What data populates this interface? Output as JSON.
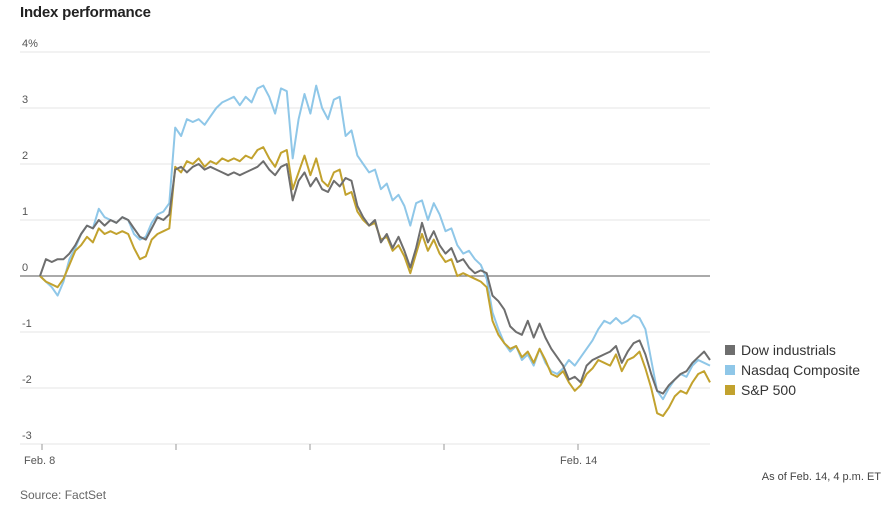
{
  "title": "Index performance",
  "note": "As of Feb. 14, 4 p.m. ET",
  "source": "Source: FactSet",
  "chart_data": {
    "type": "line",
    "ylim": [
      -3,
      4
    ],
    "y_ticks": [
      "4%",
      "3",
      "2",
      "1",
      "0",
      "-1",
      "-2",
      "-3"
    ],
    "x_ticks": [
      "Feb. 8",
      "Feb. 14"
    ],
    "legend_position": "right",
    "grid": true,
    "series": [
      {
        "name": "Dow industrials",
        "color": "#6e6e6e",
        "values": [
          0.0,
          0.3,
          0.25,
          0.3,
          0.3,
          0.4,
          0.55,
          0.75,
          0.9,
          0.85,
          1.0,
          0.9,
          1.0,
          0.95,
          1.05,
          1.0,
          0.85,
          0.7,
          0.65,
          0.85,
          1.05,
          1.0,
          1.1,
          1.9,
          1.95,
          1.85,
          1.95,
          2.0,
          1.9,
          1.95,
          1.9,
          1.85,
          1.8,
          1.85,
          1.8,
          1.85,
          1.9,
          1.95,
          2.05,
          1.9,
          1.8,
          1.95,
          2.0,
          1.35,
          1.7,
          1.85,
          1.6,
          1.75,
          1.55,
          1.5,
          1.7,
          1.6,
          1.75,
          1.7,
          1.25,
          1.05,
          0.9,
          1.0,
          0.6,
          0.75,
          0.5,
          0.7,
          0.45,
          0.15,
          0.5,
          0.95,
          0.6,
          0.8,
          0.55,
          0.4,
          0.5,
          0.25,
          0.3,
          0.15,
          0.05,
          0.1,
          0.05,
          -0.35,
          -0.45,
          -0.6,
          -0.9,
          -1.0,
          -1.05,
          -0.8,
          -1.1,
          -0.85,
          -1.1,
          -1.3,
          -1.45,
          -1.6,
          -1.85,
          -1.8,
          -1.9,
          -1.6,
          -1.5,
          -1.45,
          -1.4,
          -1.35,
          -1.25,
          -1.55,
          -1.35,
          -1.2,
          -1.15,
          -1.4,
          -1.75,
          -2.05,
          -2.1,
          -1.95,
          -1.85,
          -1.75,
          -1.7,
          -1.55,
          -1.45,
          -1.35,
          -1.5
        ]
      },
      {
        "name": "Nasdaq Composite",
        "color": "#8fc7e8",
        "values": [
          0.0,
          -0.1,
          -0.2,
          -0.35,
          -0.1,
          0.3,
          0.5,
          0.75,
          0.9,
          0.85,
          1.2,
          1.05,
          1.0,
          0.95,
          1.05,
          1.0,
          0.75,
          0.65,
          0.7,
          0.95,
          1.1,
          1.15,
          1.3,
          2.65,
          2.5,
          2.8,
          2.75,
          2.8,
          2.7,
          2.85,
          3.0,
          3.1,
          3.15,
          3.2,
          3.05,
          3.2,
          3.1,
          3.35,
          3.4,
          3.2,
          2.9,
          3.35,
          3.3,
          2.1,
          2.8,
          3.25,
          2.9,
          3.4,
          3.0,
          2.8,
          3.15,
          3.2,
          2.5,
          2.6,
          2.15,
          2.0,
          1.85,
          1.9,
          1.55,
          1.65,
          1.35,
          1.45,
          1.25,
          0.9,
          1.3,
          1.35,
          1.0,
          1.3,
          1.1,
          0.8,
          0.85,
          0.55,
          0.4,
          0.45,
          0.3,
          0.2,
          -0.05,
          -0.65,
          -0.95,
          -1.2,
          -1.35,
          -1.25,
          -1.5,
          -1.4,
          -1.6,
          -1.3,
          -1.55,
          -1.7,
          -1.75,
          -1.65,
          -1.5,
          -1.6,
          -1.45,
          -1.3,
          -1.15,
          -0.95,
          -0.8,
          -0.85,
          -0.75,
          -0.85,
          -0.8,
          -0.7,
          -0.75,
          -0.95,
          -1.5,
          -2.05,
          -2.2,
          -2.0,
          -1.85,
          -1.75,
          -1.8,
          -1.6,
          -1.5,
          -1.55,
          -1.6
        ]
      },
      {
        "name": "S&P 500",
        "color": "#c2a22e",
        "values": [
          0.0,
          -0.1,
          -0.15,
          -0.2,
          -0.05,
          0.2,
          0.45,
          0.55,
          0.7,
          0.6,
          0.85,
          0.75,
          0.8,
          0.75,
          0.8,
          0.75,
          0.5,
          0.3,
          0.35,
          0.65,
          0.75,
          0.8,
          0.85,
          1.95,
          1.85,
          2.05,
          2.0,
          2.1,
          1.95,
          2.05,
          2.0,
          2.1,
          2.05,
          2.1,
          2.05,
          2.15,
          2.1,
          2.25,
          2.3,
          2.1,
          1.95,
          2.2,
          2.25,
          1.55,
          1.85,
          2.15,
          1.8,
          2.1,
          1.7,
          1.6,
          1.85,
          1.9,
          1.45,
          1.5,
          1.15,
          1.0,
          0.9,
          0.95,
          0.65,
          0.7,
          0.45,
          0.55,
          0.35,
          0.05,
          0.4,
          0.75,
          0.45,
          0.65,
          0.4,
          0.25,
          0.3,
          0.0,
          0.05,
          0.0,
          -0.05,
          -0.1,
          -0.2,
          -0.8,
          -1.05,
          -1.2,
          -1.3,
          -1.25,
          -1.45,
          -1.35,
          -1.55,
          -1.3,
          -1.5,
          -1.75,
          -1.8,
          -1.7,
          -1.9,
          -2.05,
          -1.95,
          -1.75,
          -1.65,
          -1.5,
          -1.55,
          -1.6,
          -1.4,
          -1.7,
          -1.5,
          -1.45,
          -1.35,
          -1.65,
          -2.0,
          -2.45,
          -2.5,
          -2.35,
          -2.15,
          -2.05,
          -2.1,
          -1.9,
          -1.75,
          -1.7,
          -1.9
        ]
      }
    ]
  }
}
